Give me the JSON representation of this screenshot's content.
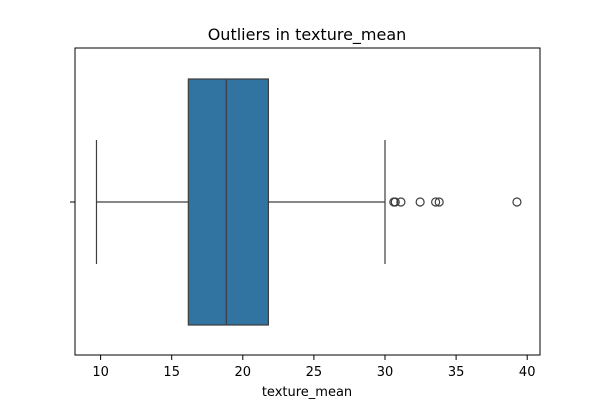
{
  "chart_data": {
    "type": "boxplot",
    "orientation": "horizontal",
    "title": "Outliers in texture_mean",
    "xlabel": "texture_mean",
    "ylabel": "",
    "xlim": [
      8.2,
      40.9
    ],
    "xticks": [
      10,
      15,
      20,
      25,
      30,
      35,
      40
    ],
    "xtick_labels": [
      "10",
      "15",
      "20",
      "25",
      "30",
      "35",
      "40"
    ],
    "box": {
      "whisker_low": 9.71,
      "q1": 16.17,
      "median": 18.84,
      "q3": 21.8,
      "whisker_high": 30.0
    },
    "outliers": [
      30.62,
      30.72,
      31.12,
      32.47,
      33.56,
      33.81,
      39.28
    ],
    "box_color": "#3274a1",
    "line_color": "#3d3d3d",
    "grid": false,
    "legend": "none"
  }
}
